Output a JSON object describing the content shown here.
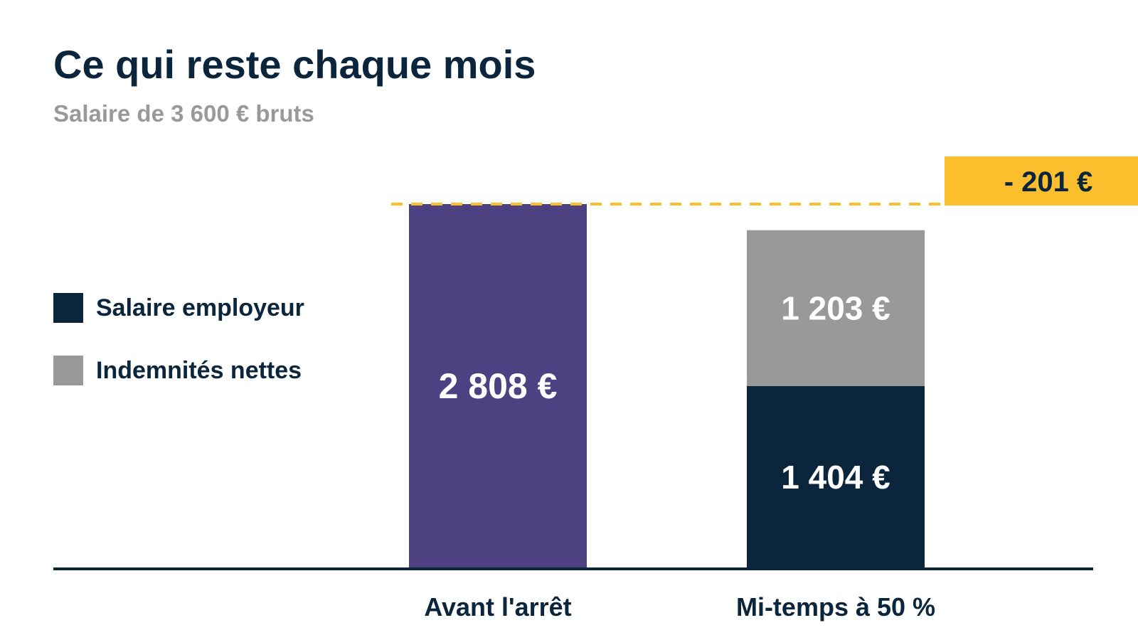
{
  "header": {
    "title": "Ce qui reste chaque mois",
    "subtitle": "Salaire de 3 600 € bruts"
  },
  "legend": [
    {
      "label": "Salaire employeur",
      "color": "#0b253c"
    },
    {
      "label": "Indemnités nettes",
      "color": "#999999"
    }
  ],
  "chart_data": {
    "type": "bar",
    "stacked": true,
    "title": "Ce qui reste chaque mois",
    "subtitle": "Salaire de 3 600 € bruts",
    "categories": [
      "Avant l'arrêt",
      "Mi-temps à 50 %"
    ],
    "series": [
      {
        "name": "Salaire",
        "values": [
          2808,
          null
        ],
        "color": "#4e4181",
        "labels": [
          "2 808 €",
          ""
        ]
      },
      {
        "name": "Salaire employeur",
        "values": [
          null,
          1404
        ],
        "color": "#0b253c",
        "labels": [
          "",
          "1 404 €"
        ]
      },
      {
        "name": "Indemnités nettes",
        "values": [
          null,
          1203
        ],
        "color": "#999999",
        "labels": [
          "",
          "1 203 €"
        ]
      }
    ],
    "ylim": [
      0,
      2808
    ],
    "grid": false,
    "legend_position": "left",
    "reference_line": {
      "value": 2808,
      "color": "#fbbf2e",
      "style": "dashed"
    },
    "annotation": {
      "text": "- 201 €",
      "color": "#fbbf2e"
    },
    "label_color": "#ffffff",
    "axis_color": "#0b253c"
  }
}
